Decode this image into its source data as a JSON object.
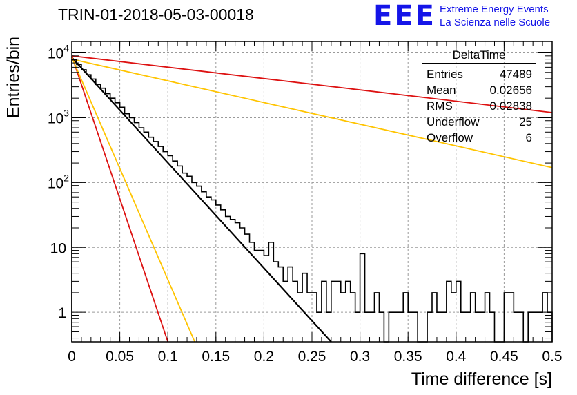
{
  "title": "TRIN-01-2018-05-03-00018",
  "logo": {
    "mark": "EEE",
    "line1": "Extreme Energy Events",
    "line2": "La Scienza nelle Scuole",
    "color": "#1515e8"
  },
  "stats": {
    "name": "DeltaTime",
    "rows": [
      {
        "label": "Entries",
        "value": "47489"
      },
      {
        "label": "Mean",
        "value": "0.02656"
      },
      {
        "label": "RMS",
        "value": "0.02838"
      },
      {
        "label": "Underflow",
        "value": "25"
      },
      {
        "label": "Overflow",
        "value": "6"
      }
    ]
  },
  "chart_data": {
    "type": "line",
    "xlabel": "Time difference [s]",
    "ylabel": "Entries/bin",
    "xlim": [
      0,
      0.5
    ],
    "ylim": [
      0.35,
      15000
    ],
    "yscale": "log",
    "grid": true,
    "bin_width": 0.005,
    "x_ticks": [
      {
        "v": 0,
        "label": "0"
      },
      {
        "v": 0.05,
        "label": "0.05"
      },
      {
        "v": 0.1,
        "label": "0.1"
      },
      {
        "v": 0.15,
        "label": "0.15"
      },
      {
        "v": 0.2,
        "label": "0.2"
      },
      {
        "v": 0.25,
        "label": "0.25"
      },
      {
        "v": 0.3,
        "label": "0.3"
      },
      {
        "v": 0.35,
        "label": "0.35"
      },
      {
        "v": 0.4,
        "label": "0.4"
      },
      {
        "v": 0.45,
        "label": "0.45"
      },
      {
        "v": 0.5,
        "label": "0.5"
      }
    ],
    "y_ticks": [
      {
        "v": 1,
        "label": "1"
      },
      {
        "v": 10,
        "label": "10"
      },
      {
        "v": 100,
        "base": "10",
        "exp": "2"
      },
      {
        "v": 1000,
        "base": "10",
        "exp": "3"
      },
      {
        "v": 10000,
        "base": "10",
        "exp": "4"
      }
    ],
    "histogram": {
      "color": "#000000",
      "bin_edges_start": 0,
      "values": [
        7800,
        6600,
        5500,
        4600,
        3950,
        3250,
        2850,
        2350,
        2000,
        1700,
        1450,
        1150,
        1000,
        840,
        700,
        600,
        500,
        430,
        360,
        300,
        260,
        215,
        180,
        140,
        125,
        100,
        88,
        72,
        60,
        54,
        45,
        38,
        30,
        27,
        24,
        20,
        16,
        12,
        9,
        9,
        7.5,
        12,
        6,
        5,
        3,
        5,
        3,
        2,
        4,
        2,
        2,
        1,
        3,
        1,
        3,
        3,
        2,
        3,
        2,
        1,
        8,
        1,
        1,
        2,
        1,
        0,
        1,
        1,
        1,
        2,
        1,
        1,
        0,
        0,
        1,
        2,
        1,
        1,
        3,
        2,
        3,
        1,
        1,
        2,
        1,
        1,
        2,
        1,
        0,
        0,
        2,
        2,
        1,
        1,
        0,
        1,
        1,
        1,
        2,
        1
      ]
    },
    "fits": [
      {
        "color": "#000000",
        "width": 2.2,
        "y0": 8500,
        "y_end": 0.35,
        "x_end": 0.27
      },
      {
        "color": "#dd1111",
        "width": 1.8,
        "y0": 9000,
        "y_end": 1200,
        "x_end": 0.5
      },
      {
        "color": "#ffc400",
        "width": 1.8,
        "y0": 8000,
        "y_end": 170,
        "x_end": 0.5
      },
      {
        "color": "#dd1111",
        "width": 1.8,
        "y0": 9000,
        "y_end": 0.35,
        "x_end": 0.1
      },
      {
        "color": "#ffc400",
        "width": 1.8,
        "y0": 8500,
        "y_end": 0.35,
        "x_end": 0.128
      }
    ]
  }
}
